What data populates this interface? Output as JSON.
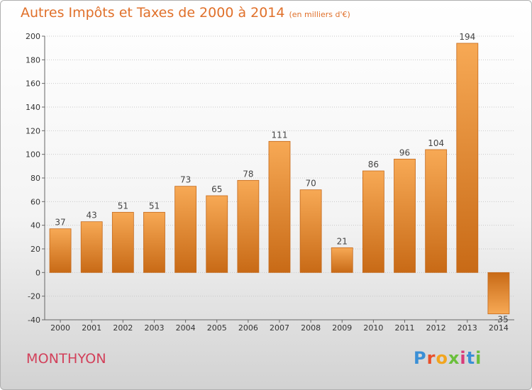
{
  "chart_data": {
    "type": "bar",
    "title": "Autres Impôts et Taxes de 2000 à 2014",
    "subtitle": "(en milliers d'€)",
    "categories": [
      "2000",
      "2001",
      "2002",
      "2003",
      "2004",
      "2005",
      "2006",
      "2007",
      "2008",
      "2009",
      "2010",
      "2011",
      "2012",
      "2013",
      "2014"
    ],
    "values": [
      37,
      43,
      51,
      51,
      73,
      65,
      78,
      111,
      70,
      21,
      86,
      96,
      104,
      194,
      -35
    ],
    "data_labels": [
      "37",
      "43",
      "51",
      "51",
      "73",
      "65",
      "78",
      "111",
      "70",
      "21",
      "86",
      "96",
      "104",
      "194",
      "-35"
    ],
    "ylim": [
      -40,
      200
    ],
    "yticks": [
      -40,
      -20,
      0,
      20,
      40,
      60,
      80,
      100,
      120,
      140,
      160,
      180,
      200
    ],
    "ytick_labels": [
      "-40",
      "-20",
      "0",
      "20",
      "40",
      "60",
      "80",
      "100",
      "120",
      "140",
      "160",
      "180",
      "200"
    ],
    "grid": true,
    "bar_color": "#e8822e",
    "xlabel": "",
    "ylabel": ""
  },
  "commune": "MONTHYON",
  "logo": {
    "letters": [
      "P",
      "r",
      "o",
      "x",
      "i",
      "t",
      "i"
    ],
    "colors": [
      "#3a8fd6",
      "#e84f2a",
      "#f2a51e",
      "#6abf3b",
      "#d83a7a",
      "#3a8fd6",
      "#6abf3b"
    ]
  }
}
